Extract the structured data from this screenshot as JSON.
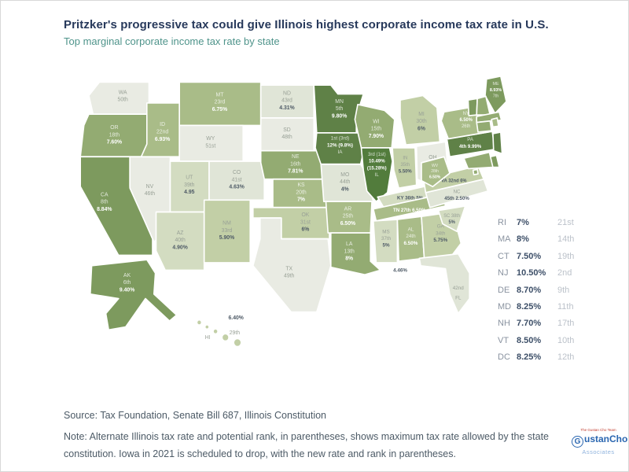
{
  "header": {
    "title": "Pritzker's progressive tax could give Illinois highest corporate income tax rate in U.S.",
    "subtitle": "Top marginal corporate income tax rate by state"
  },
  "colors": {
    "title_text": "#27395b",
    "subtitle_text": "#4f948b",
    "map_border": "#ffffff",
    "dark_label": "#4e5a66",
    "muted_label": "#98a096",
    "tiers": {
      "none": "#e9ebe3",
      "t0": "#e0e5d7",
      "t1": "#d3dcc1",
      "t2": "#c2cfa6",
      "t3": "#a9bc88",
      "t4": "#93ab72",
      "t5": "#7d9a5e",
      "t6": "#5f8147",
      "t7": "#527c3c"
    }
  },
  "chart_data": {
    "type": "choropleth",
    "title": "Top marginal corporate income tax rate by state",
    "unit": "percent",
    "legend_position": "right",
    "states": [
      {
        "abbr": "WA",
        "rank": "50th",
        "rate": "",
        "tier": "none"
      },
      {
        "abbr": "OR",
        "rank": "18th",
        "rate": "7.60%",
        "tier": "t4"
      },
      {
        "abbr": "CA",
        "rank": "8th",
        "rate": "8.84%",
        "tier": "t5"
      },
      {
        "abbr": "NV",
        "rank": "46th",
        "rate": "",
        "tier": "none"
      },
      {
        "abbr": "ID",
        "rank": "22nd",
        "rate": "6.93%",
        "tier": "t3"
      },
      {
        "abbr": "MT",
        "rank": "23rd",
        "rate": "6.75%",
        "tier": "t3"
      },
      {
        "abbr": "WY",
        "rank": "51st",
        "rate": "",
        "tier": "none"
      },
      {
        "abbr": "UT",
        "rank": "39th",
        "rate": "4.95",
        "tier": "t1"
      },
      {
        "abbr": "CO",
        "rank": "41st",
        "rate": "4.63%",
        "tier": "t0"
      },
      {
        "abbr": "AZ",
        "rank": "40th",
        "rate": "4.90%",
        "tier": "t1"
      },
      {
        "abbr": "NM",
        "rank": "33rd",
        "rate": "5.90%",
        "tier": "t2"
      },
      {
        "abbr": "ND",
        "rank": "43rd",
        "rate": "4.31%",
        "tier": "t0"
      },
      {
        "abbr": "SD",
        "rank": "48th",
        "rate": "",
        "tier": "none"
      },
      {
        "abbr": "NE",
        "rank": "16th",
        "rate": "7.81%",
        "tier": "t4"
      },
      {
        "abbr": "KS",
        "rank": "20th",
        "rate": "7%",
        "tier": "t3"
      },
      {
        "abbr": "OK",
        "rank": "31st",
        "rate": "6%",
        "tier": "t2"
      },
      {
        "abbr": "TX",
        "rank": "49th",
        "rate": "",
        "tier": "none"
      },
      {
        "abbr": "MN",
        "rank": "5th",
        "rate": "9.80%",
        "tier": "t6"
      },
      {
        "abbr": "IA",
        "rank": "1st (3rd)",
        "rate": "12% (9.8%)",
        "tier": "t6"
      },
      {
        "abbr": "MO",
        "rank": "44th",
        "rate": "4%",
        "tier": "t0"
      },
      {
        "abbr": "AR",
        "rank": "25th",
        "rate": "6.50%",
        "tier": "t3"
      },
      {
        "abbr": "LA",
        "rank": "13th",
        "rate": "8%",
        "tier": "t4"
      },
      {
        "abbr": "WI",
        "rank": "15th",
        "rate": "7.90%",
        "tier": "t4"
      },
      {
        "abbr": "IL",
        "rank": "3rd (1st)",
        "rate": "10.49% (15.28%)",
        "tier": "t7"
      },
      {
        "abbr": "MI",
        "rank": "30th",
        "rate": "6%",
        "tier": "t2"
      },
      {
        "abbr": "IN",
        "rank": "35th",
        "rate": "5.50%",
        "tier": "t2"
      },
      {
        "abbr": "OH",
        "rank": "47th",
        "rate": "",
        "tier": "none"
      },
      {
        "abbr": "KY",
        "rank": "36th",
        "rate": "5%",
        "tier": "t1"
      },
      {
        "abbr": "TN",
        "rank": "27th",
        "rate": "6.50%",
        "tier": "t3"
      },
      {
        "abbr": "MS",
        "rank": "37th",
        "rate": "5%",
        "tier": "t1"
      },
      {
        "abbr": "AL",
        "rank": "24th",
        "rate": "6.50%",
        "tier": "t3"
      },
      {
        "abbr": "GA",
        "rank": "34th",
        "rate": "5.75%",
        "tier": "t2"
      },
      {
        "abbr": "FL",
        "rank": "42nd",
        "rate": "4.46%",
        "tier": "t0"
      },
      {
        "abbr": "SC",
        "rank": "38th",
        "rate": "5%",
        "tier": "t1"
      },
      {
        "abbr": "NC",
        "rank": "45th",
        "rate": "2.50%",
        "tier": "t0"
      },
      {
        "abbr": "VA",
        "rank": "32nd",
        "rate": "6%",
        "tier": "t2"
      },
      {
        "abbr": "WV",
        "rank": "28th",
        "rate": "6.50%",
        "tier": "t3"
      },
      {
        "abbr": "PA",
        "rank": "4th",
        "rate": "9.99%",
        "tier": "t6"
      },
      {
        "abbr": "NY",
        "rank": "26th",
        "rate": "6.50%",
        "tier": "t3"
      },
      {
        "abbr": "ME",
        "rank": "7th",
        "rate": "8.93%",
        "tier": "t5"
      },
      {
        "abbr": "AK",
        "rank": "6th",
        "rate": "9.40%",
        "tier": "t5"
      },
      {
        "abbr": "HI",
        "rank": "29th",
        "rate": "6.40%",
        "tier": "t2"
      },
      {
        "abbr": "VT",
        "rank": "10th",
        "rate": "8.50%",
        "tier": "t5"
      },
      {
        "abbr": "NH",
        "rank": "17th",
        "rate": "7.70%",
        "tier": "t4"
      },
      {
        "abbr": "MA",
        "rank": "14th",
        "rate": "8%",
        "tier": "t4"
      },
      {
        "abbr": "CT",
        "rank": "19th",
        "rate": "7.50%",
        "tier": "t4"
      },
      {
        "abbr": "RI",
        "rank": "21st",
        "rate": "7%",
        "tier": "t3"
      },
      {
        "abbr": "NJ",
        "rank": "2nd",
        "rate": "10.50%",
        "tier": "t6"
      },
      {
        "abbr": "DE",
        "rank": "9th",
        "rate": "8.70%",
        "tier": "t5"
      },
      {
        "abbr": "MD",
        "rank": "11th",
        "rate": "8.25%",
        "tier": "t4"
      },
      {
        "abbr": "DC",
        "rank": "12th",
        "rate": "8.25%",
        "tier": "t4"
      }
    ],
    "side_list": [
      {
        "abbr": "RI",
        "rate": "7%",
        "rank": "21st"
      },
      {
        "abbr": "MA",
        "rate": "8%",
        "rank": "14th"
      },
      {
        "abbr": "CT",
        "rate": "7.50%",
        "rank": "19th"
      },
      {
        "abbr": "NJ",
        "rate": "10.50%",
        "rank": "2nd"
      },
      {
        "abbr": "DE",
        "rate": "8.70%",
        "rank": "9th"
      },
      {
        "abbr": "MD",
        "rate": "8.25%",
        "rank": "11th"
      },
      {
        "abbr": "NH",
        "rate": "7.70%",
        "rank": "17th"
      },
      {
        "abbr": "VT",
        "rate": "8.50%",
        "rank": "10th"
      },
      {
        "abbr": "DC",
        "rate": "8.25%",
        "rank": "12th"
      }
    ]
  },
  "footer": {
    "source": "Source: Tax Foundation, Senate Bill 687, Illinois Constitution",
    "note": "Note: Alternate Illinois tax rate and potential rank, in parentheses, shows maximum tax rate allowed by the state constitution. Iowa in 2021 is scheduled to drop, with the new rate and rank in parentheses."
  },
  "logo": {
    "tagline": "The Gustan Cho Team",
    "name_g": "G",
    "name_rest": "ustanCho",
    "sub": "Associates"
  }
}
